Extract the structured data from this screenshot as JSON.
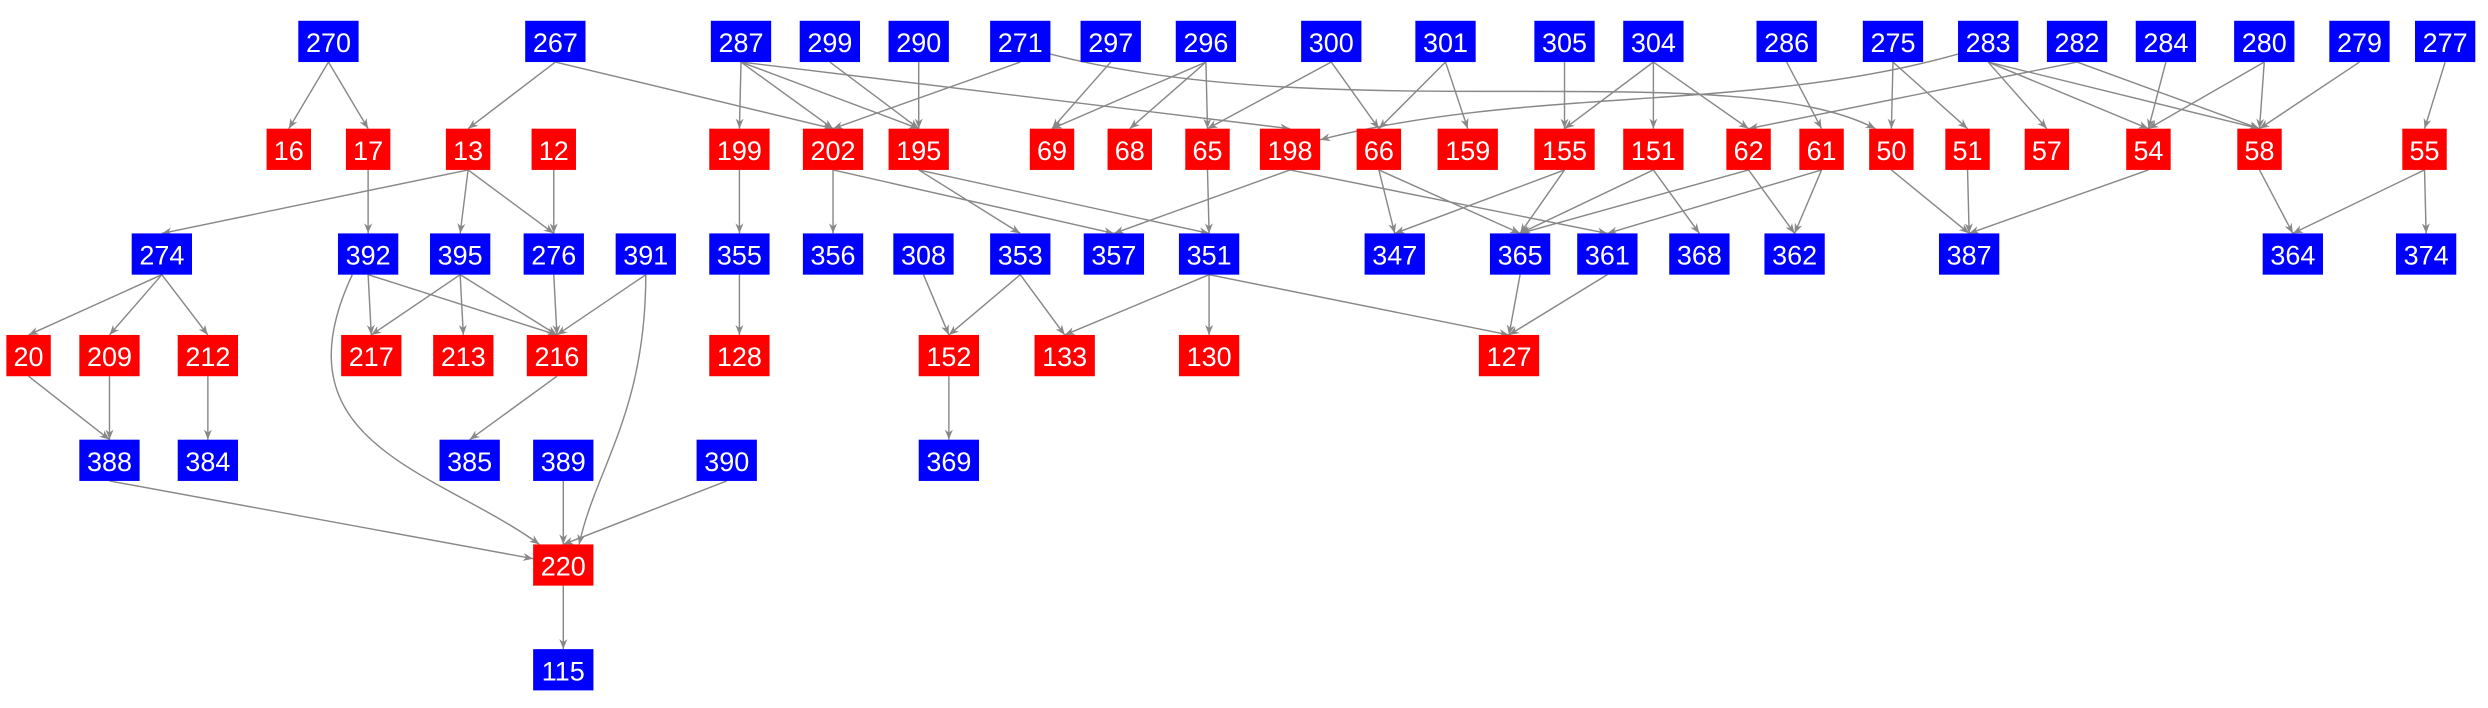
{
  "colors": {
    "blue_node": "#0000ff",
    "red_node": "#ff0000",
    "edge": "#888888",
    "label": "#ffffff"
  },
  "nodes": [
    {
      "id": "270",
      "color": "blue"
    },
    {
      "id": "267",
      "color": "blue"
    },
    {
      "id": "287",
      "color": "blue"
    },
    {
      "id": "299",
      "color": "blue"
    },
    {
      "id": "290",
      "color": "blue"
    },
    {
      "id": "271",
      "color": "blue"
    },
    {
      "id": "297",
      "color": "blue"
    },
    {
      "id": "296",
      "color": "blue"
    },
    {
      "id": "300",
      "color": "blue"
    },
    {
      "id": "301",
      "color": "blue"
    },
    {
      "id": "305",
      "color": "blue"
    },
    {
      "id": "304",
      "color": "blue"
    },
    {
      "id": "286",
      "color": "blue"
    },
    {
      "id": "275",
      "color": "blue"
    },
    {
      "id": "283",
      "color": "blue"
    },
    {
      "id": "282",
      "color": "blue"
    },
    {
      "id": "284",
      "color": "blue"
    },
    {
      "id": "280",
      "color": "blue"
    },
    {
      "id": "279",
      "color": "blue"
    },
    {
      "id": "277",
      "color": "blue"
    },
    {
      "id": "16",
      "color": "red"
    },
    {
      "id": "17",
      "color": "red"
    },
    {
      "id": "13",
      "color": "red"
    },
    {
      "id": "12",
      "color": "red"
    },
    {
      "id": "199",
      "color": "red"
    },
    {
      "id": "202",
      "color": "red"
    },
    {
      "id": "195",
      "color": "red"
    },
    {
      "id": "69",
      "color": "red"
    },
    {
      "id": "68",
      "color": "red"
    },
    {
      "id": "65",
      "color": "red"
    },
    {
      "id": "198",
      "color": "red"
    },
    {
      "id": "66",
      "color": "red"
    },
    {
      "id": "159",
      "color": "red"
    },
    {
      "id": "155",
      "color": "red"
    },
    {
      "id": "151",
      "color": "red"
    },
    {
      "id": "62",
      "color": "red"
    },
    {
      "id": "61",
      "color": "red"
    },
    {
      "id": "50",
      "color": "red"
    },
    {
      "id": "51",
      "color": "red"
    },
    {
      "id": "57",
      "color": "red"
    },
    {
      "id": "54",
      "color": "red"
    },
    {
      "id": "58",
      "color": "red"
    },
    {
      "id": "55",
      "color": "red"
    },
    {
      "id": "274",
      "color": "blue"
    },
    {
      "id": "392",
      "color": "blue"
    },
    {
      "id": "395",
      "color": "blue"
    },
    {
      "id": "276",
      "color": "blue"
    },
    {
      "id": "391",
      "color": "blue"
    },
    {
      "id": "355",
      "color": "blue"
    },
    {
      "id": "356",
      "color": "blue"
    },
    {
      "id": "308",
      "color": "blue"
    },
    {
      "id": "353",
      "color": "blue"
    },
    {
      "id": "357",
      "color": "blue"
    },
    {
      "id": "351",
      "color": "blue"
    },
    {
      "id": "347",
      "color": "blue"
    },
    {
      "id": "365",
      "color": "blue"
    },
    {
      "id": "361",
      "color": "blue"
    },
    {
      "id": "368",
      "color": "blue"
    },
    {
      "id": "362",
      "color": "blue"
    },
    {
      "id": "387",
      "color": "blue"
    },
    {
      "id": "364",
      "color": "blue"
    },
    {
      "id": "374",
      "color": "blue"
    },
    {
      "id": "20",
      "color": "red"
    },
    {
      "id": "209",
      "color": "red"
    },
    {
      "id": "212",
      "color": "red"
    },
    {
      "id": "217",
      "color": "red"
    },
    {
      "id": "213",
      "color": "red"
    },
    {
      "id": "216",
      "color": "red"
    },
    {
      "id": "128",
      "color": "red"
    },
    {
      "id": "152",
      "color": "red"
    },
    {
      "id": "133",
      "color": "red"
    },
    {
      "id": "130",
      "color": "red"
    },
    {
      "id": "127",
      "color": "red"
    },
    {
      "id": "388",
      "color": "blue"
    },
    {
      "id": "384",
      "color": "blue"
    },
    {
      "id": "385",
      "color": "blue"
    },
    {
      "id": "389",
      "color": "blue"
    },
    {
      "id": "390",
      "color": "blue"
    },
    {
      "id": "369",
      "color": "blue"
    },
    {
      "id": "220",
      "color": "red"
    },
    {
      "id": "115",
      "color": "blue"
    }
  ],
  "edges": [
    [
      "270",
      "16"
    ],
    [
      "270",
      "17"
    ],
    [
      "267",
      "13"
    ],
    [
      "267",
      "202"
    ],
    [
      "287",
      "199"
    ],
    [
      "287",
      "202"
    ],
    [
      "287",
      "195"
    ],
    [
      "287",
      "198"
    ],
    [
      "299",
      "195"
    ],
    [
      "290",
      "195"
    ],
    [
      "271",
      "202"
    ],
    [
      "271",
      "50"
    ],
    [
      "297",
      "69"
    ],
    [
      "296",
      "69"
    ],
    [
      "296",
      "68"
    ],
    [
      "296",
      "65"
    ],
    [
      "300",
      "65"
    ],
    [
      "300",
      "66"
    ],
    [
      "301",
      "66"
    ],
    [
      "301",
      "159"
    ],
    [
      "305",
      "155"
    ],
    [
      "304",
      "155"
    ],
    [
      "304",
      "151"
    ],
    [
      "304",
      "62"
    ],
    [
      "286",
      "61"
    ],
    [
      "275",
      "50"
    ],
    [
      "275",
      "51"
    ],
    [
      "283",
      "198"
    ],
    [
      "283",
      "57"
    ],
    [
      "283",
      "54"
    ],
    [
      "283",
      "58"
    ],
    [
      "282",
      "62"
    ],
    [
      "282",
      "58"
    ],
    [
      "284",
      "54"
    ],
    [
      "280",
      "54"
    ],
    [
      "280",
      "58"
    ],
    [
      "279",
      "58"
    ],
    [
      "277",
      "55"
    ],
    [
      "13",
      "274"
    ],
    [
      "13",
      "395"
    ],
    [
      "13",
      "276"
    ],
    [
      "12",
      "276"
    ],
    [
      "17",
      "392"
    ],
    [
      "199",
      "355"
    ],
    [
      "202",
      "356"
    ],
    [
      "202",
      "357"
    ],
    [
      "195",
      "353"
    ],
    [
      "195",
      "351"
    ],
    [
      "65",
      "351"
    ],
    [
      "198",
      "357"
    ],
    [
      "198",
      "361"
    ],
    [
      "66",
      "347"
    ],
    [
      "66",
      "365"
    ],
    [
      "155",
      "347"
    ],
    [
      "155",
      "365"
    ],
    [
      "151",
      "365"
    ],
    [
      "151",
      "368"
    ],
    [
      "62",
      "365"
    ],
    [
      "62",
      "362"
    ],
    [
      "61",
      "361"
    ],
    [
      "61",
      "362"
    ],
    [
      "50",
      "387"
    ],
    [
      "51",
      "387"
    ],
    [
      "54",
      "387"
    ],
    [
      "58",
      "364"
    ],
    [
      "55",
      "364"
    ],
    [
      "55",
      "374"
    ],
    [
      "274",
      "20"
    ],
    [
      "274",
      "209"
    ],
    [
      "274",
      "212"
    ],
    [
      "392",
      "217"
    ],
    [
      "392",
      "216"
    ],
    [
      "392",
      "220"
    ],
    [
      "395",
      "217"
    ],
    [
      "395",
      "213"
    ],
    [
      "395",
      "216"
    ],
    [
      "276",
      "216"
    ],
    [
      "391",
      "216"
    ],
    [
      "391",
      "220"
    ],
    [
      "355",
      "128"
    ],
    [
      "308",
      "152"
    ],
    [
      "353",
      "152"
    ],
    [
      "353",
      "133"
    ],
    [
      "351",
      "133"
    ],
    [
      "351",
      "130"
    ],
    [
      "351",
      "127"
    ],
    [
      "365",
      "127"
    ],
    [
      "361",
      "127"
    ],
    [
      "20",
      "388"
    ],
    [
      "209",
      "388"
    ],
    [
      "212",
      "384"
    ],
    [
      "216",
      "385"
    ],
    [
      "152",
      "369"
    ],
    [
      "388",
      "220"
    ],
    [
      "389",
      "220"
    ],
    [
      "390",
      "220"
    ],
    [
      "220",
      "115"
    ]
  ]
}
